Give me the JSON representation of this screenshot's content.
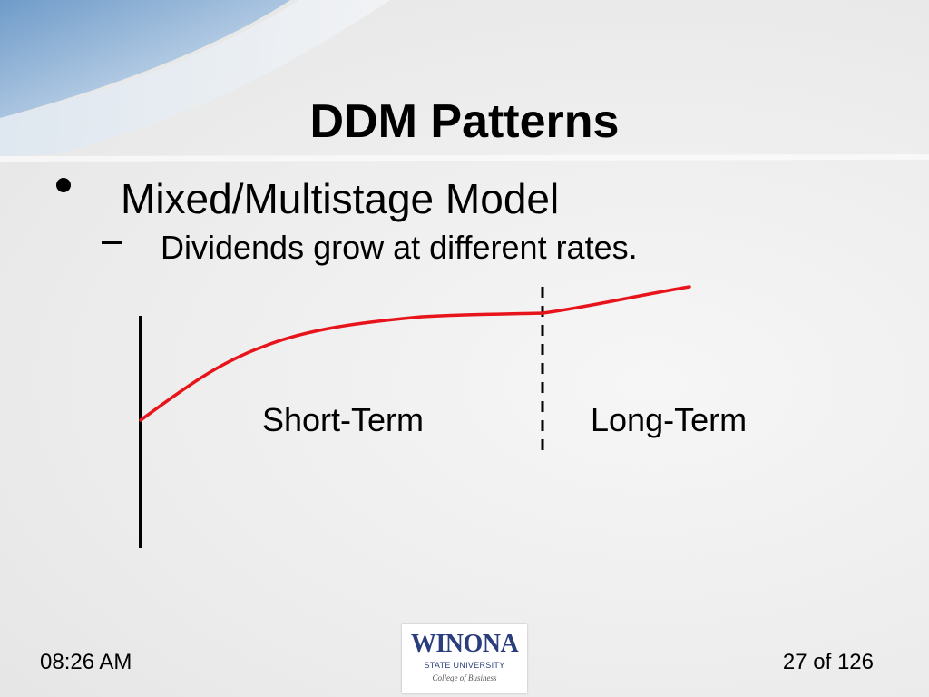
{
  "slide": {
    "title": "DDM Patterns",
    "bullet": "Mixed/Multistage Model",
    "sub_bullet": "Dividends grow at different rates."
  },
  "diagram": {
    "labels": {
      "short_term": "Short-Term",
      "long_term": "Long-Term"
    },
    "colors": {
      "growth_curve": "#e8141c",
      "axis": "#000000",
      "divider": "#000000"
    }
  },
  "footer": {
    "time": "08:26 AM",
    "page": "27 of 126"
  },
  "logo": {
    "name": "WINONA",
    "subtitle": "STATE UNIVERSITY",
    "college": "College of Business"
  }
}
